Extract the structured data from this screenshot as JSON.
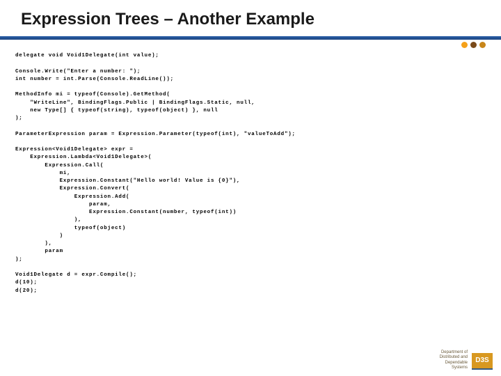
{
  "title": "Expression Trees – Another Example",
  "dots": [
    "#f5a11a",
    "#7a4a1a",
    "#c8861a"
  ],
  "code_lines": [
    "delegate void Void1Delegate(int value);",
    "",
    "Console.Write(\"Enter a number: \");",
    "int number = int.Parse(Console.ReadLine());",
    "",
    "MethodInfo mi = typeof(Console).GetMethod(",
    "    \"WriteLine\", BindingFlags.Public | BindingFlags.Static, null,",
    "    new Type[] { typeof(string), typeof(object) }, null",
    ");",
    "",
    "ParameterExpression param = Expression.Parameter(typeof(int), \"valueToAdd\");",
    "",
    "Expression<Void1Delegate> expr =",
    "    Expression.Lambda<Void1Delegate>(",
    "        Expression.Call(",
    "            mi,",
    "            Expression.Constant(\"Hello world! Value is {0}\"),",
    "            Expression.Convert(",
    "                Expression.Add(",
    "                    param,",
    "                    Expression.Constant(number, typeof(int))",
    "                ),",
    "                typeof(object)",
    "            )",
    "        ),",
    "        param",
    ");",
    "",
    "Void1Delegate d = expr.Compile();",
    "d(10);",
    "d(20);"
  ],
  "footer": {
    "line1": "Department of",
    "line2": "Distributed and",
    "line3": "Dependable",
    "line4": "Systems",
    "logo": "D3S"
  }
}
